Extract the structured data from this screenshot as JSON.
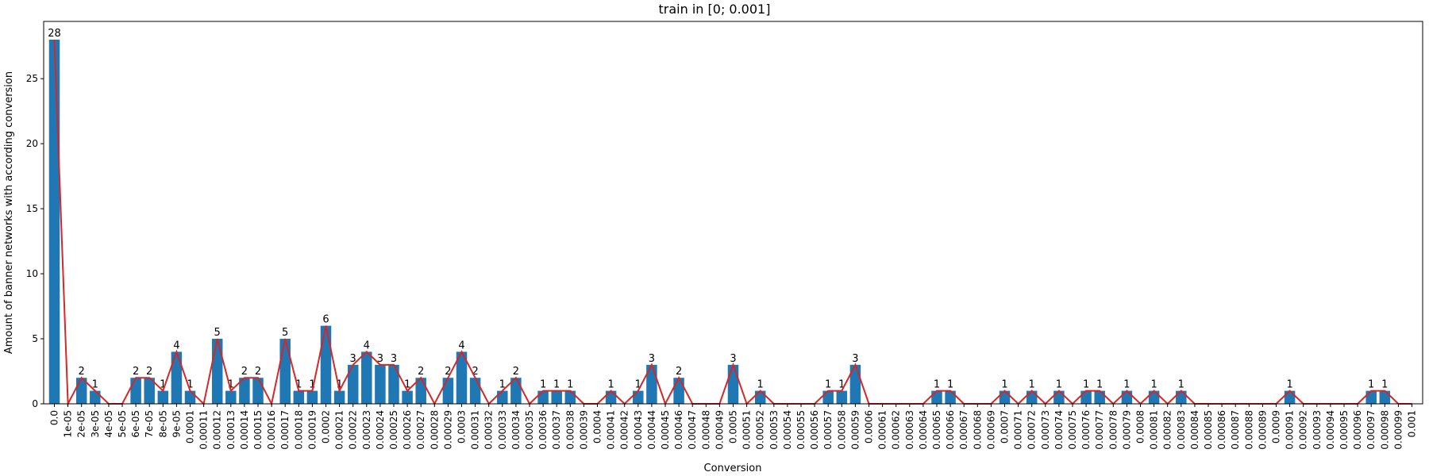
{
  "chart_data": {
    "type": "bar",
    "title": "train in [0; 0.001]",
    "xlabel": "Conversion",
    "ylabel": "Amount of banner networks with according conversion",
    "ylim": [
      0,
      29.4
    ],
    "yticks": [
      0,
      5,
      10,
      15,
      20,
      25
    ],
    "grid": false,
    "categories": [
      "0.0",
      "1e-05",
      "2e-05",
      "3e-05",
      "4e-05",
      "5e-05",
      "6e-05",
      "7e-05",
      "8e-05",
      "9e-05",
      "0.0001",
      "0.00011",
      "0.00012",
      "0.00013",
      "0.00014",
      "0.00015",
      "0.00016",
      "0.00017",
      "0.00018",
      "0.00019",
      "0.0002",
      "0.00021",
      "0.00022",
      "0.00023",
      "0.00024",
      "0.00025",
      "0.00026",
      "0.00027",
      "0.00028",
      "0.00029",
      "0.0003",
      "0.00031",
      "0.00032",
      "0.00033",
      "0.00034",
      "0.00035",
      "0.00036",
      "0.00037",
      "0.00038",
      "0.00039",
      "0.0004",
      "0.00041",
      "0.00042",
      "0.00043",
      "0.00044",
      "0.00045",
      "0.00046",
      "0.00047",
      "0.00048",
      "0.00049",
      "0.0005",
      "0.00051",
      "0.00052",
      "0.00053",
      "0.00054",
      "0.00055",
      "0.00056",
      "0.00057",
      "0.00058",
      "0.00059",
      "0.0006",
      "0.00061",
      "0.00062",
      "0.00063",
      "0.00064",
      "0.00065",
      "0.00066",
      "0.00067",
      "0.00068",
      "0.00069",
      "0.0007",
      "0.00071",
      "0.00072",
      "0.00073",
      "0.00074",
      "0.00075",
      "0.00076",
      "0.00077",
      "0.00078",
      "0.00079",
      "0.0008",
      "0.00081",
      "0.00082",
      "0.00083",
      "0.00084",
      "0.00085",
      "0.00086",
      "0.00087",
      "0.00088",
      "0.00089",
      "0.0009",
      "0.00091",
      "0.00092",
      "0.00093",
      "0.00094",
      "0.00095",
      "0.00096",
      "0.00097",
      "0.00098",
      "0.00099",
      "0.001"
    ],
    "values": [
      28,
      0,
      2,
      1,
      0,
      0,
      2,
      2,
      1,
      4,
      1,
      0,
      5,
      1,
      2,
      2,
      0,
      5,
      1,
      1,
      6,
      1,
      3,
      4,
      3,
      3,
      1,
      2,
      0,
      2,
      4,
      2,
      0,
      1,
      2,
      0,
      1,
      1,
      1,
      0,
      0,
      1,
      0,
      1,
      3,
      0,
      2,
      0,
      0,
      0,
      3,
      0,
      1,
      0,
      0,
      0,
      0,
      1,
      1,
      3,
      0,
      0,
      0,
      0,
      0,
      1,
      1,
      0,
      0,
      0,
      1,
      0,
      1,
      0,
      1,
      0,
      1,
      1,
      0,
      1,
      0,
      1,
      0,
      1,
      0,
      0,
      0,
      0,
      0,
      0,
      0,
      1,
      0,
      0,
      0,
      0,
      0,
      1,
      1,
      0,
      0
    ],
    "bar_color": "#1f77b4",
    "line_color": "#d62728",
    "overlay": "line connecting bar tops"
  }
}
